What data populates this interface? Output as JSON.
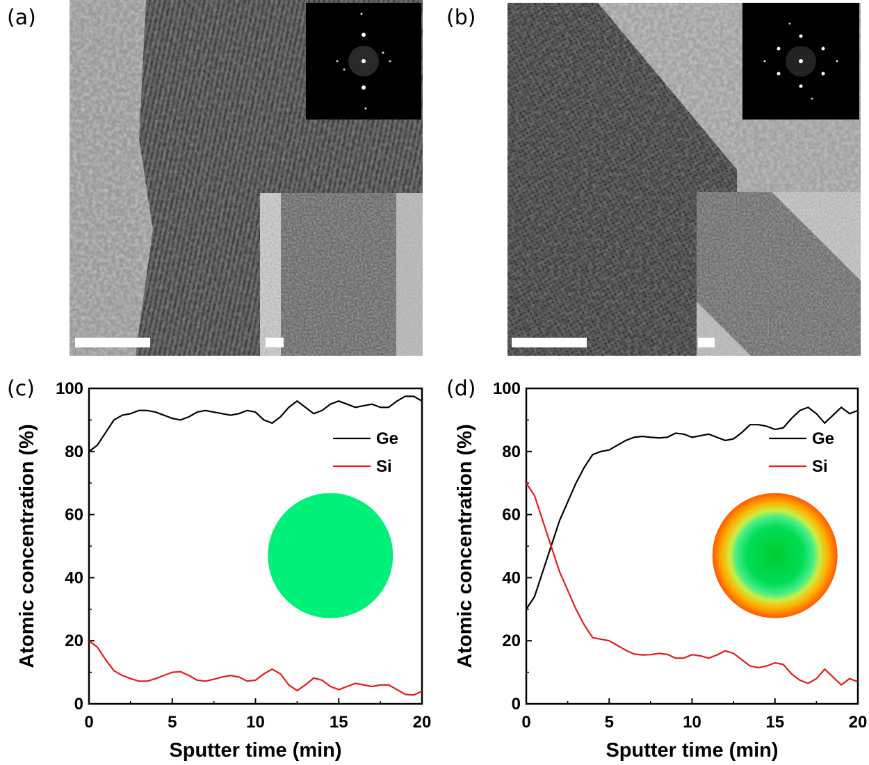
{
  "figure": {
    "panels": [
      {
        "id": "a",
        "label": "(a)"
      },
      {
        "id": "b",
        "label": "(b)"
      },
      {
        "id": "c",
        "label": "(c)"
      },
      {
        "id": "d",
        "label": "(d)"
      }
    ]
  },
  "colors": {
    "ge": "#000000",
    "si": "#e41a1c",
    "uniform_particle": "#00f07a",
    "core": "#00d23c",
    "shell": "#ff6a00"
  },
  "chart_data": [
    {
      "panel": "c",
      "type": "line",
      "xlabel": "Sputter time (min)",
      "ylabel": "Atomic concentration (%)",
      "xlim": [
        0,
        20
      ],
      "ylim": [
        0,
        100
      ],
      "xticks": [
        0,
        5,
        10,
        15,
        20
      ],
      "yticks": [
        0,
        20,
        40,
        60,
        80,
        100
      ],
      "legend": "top-right",
      "inset": "uniform green circle",
      "series": [
        {
          "name": "Ge",
          "color": "#000000",
          "x": [
            0,
            0.5,
            1,
            1.5,
            2,
            2.5,
            3,
            3.5,
            4,
            4.5,
            5,
            5.5,
            6,
            6.5,
            7,
            7.5,
            8,
            8.5,
            9,
            9.5,
            10,
            10.5,
            11,
            11.5,
            12,
            12.5,
            13,
            13.5,
            14,
            14.5,
            15,
            15.5,
            16,
            16.5,
            17,
            17.5,
            18,
            18.5,
            19,
            19.5,
            20
          ],
          "y": [
            80,
            82,
            86,
            90,
            91.5,
            92,
            93,
            93,
            92.5,
            91.5,
            90.5,
            90,
            91,
            92.5,
            93,
            92.5,
            92,
            91.5,
            92,
            93,
            92.5,
            90,
            89,
            91,
            94,
            96,
            94,
            92,
            93,
            95,
            96,
            95,
            94,
            94.5,
            95,
            94,
            94,
            96,
            97.5,
            97.5,
            96
          ]
        },
        {
          "name": "Si",
          "color": "#e41a1c",
          "x": [
            0,
            0.5,
            1,
            1.5,
            2,
            2.5,
            3,
            3.5,
            4,
            4.5,
            5,
            5.5,
            6,
            6.5,
            7,
            7.5,
            8,
            8.5,
            9,
            9.5,
            10,
            10.5,
            11,
            11.5,
            12,
            12.5,
            13,
            13.5,
            14,
            14.5,
            15,
            15.5,
            16,
            16.5,
            17,
            17.5,
            18,
            18.5,
            19,
            19.5,
            20
          ],
          "y": [
            20,
            18,
            14,
            10.5,
            9,
            8,
            7.2,
            7.2,
            8,
            9,
            10,
            10.2,
            9,
            7.5,
            7.2,
            7.8,
            8.5,
            9,
            8.5,
            7.2,
            7.5,
            9.5,
            11,
            9.5,
            6,
            4.2,
            6,
            8.2,
            7.5,
            5.5,
            4.5,
            5.5,
            6.5,
            6,
            5.5,
            6,
            6,
            4.5,
            3,
            2.8,
            4
          ]
        }
      ]
    },
    {
      "panel": "d",
      "type": "line",
      "xlabel": "Sputter time (min)",
      "ylabel": "Atomic concentration (%)",
      "xlim": [
        0,
        20
      ],
      "ylim": [
        0,
        100
      ],
      "xticks": [
        0,
        5,
        10,
        15,
        20
      ],
      "yticks": [
        0,
        20,
        40,
        60,
        80,
        100
      ],
      "legend": "top-right",
      "inset": "core-shell gradient circle (green core, orange rim)",
      "series": [
        {
          "name": "Ge",
          "color": "#000000",
          "x": [
            0,
            0.5,
            1,
            1.5,
            2,
            2.5,
            3,
            3.5,
            4,
            4.5,
            5,
            5.5,
            6,
            6.5,
            7,
            7.5,
            8,
            8.5,
            9,
            9.5,
            10,
            10.5,
            11,
            11.5,
            12,
            12.5,
            13,
            13.5,
            14,
            14.5,
            15,
            15.5,
            16,
            16.5,
            17,
            17.5,
            18,
            18.5,
            19,
            19.5,
            20
          ],
          "y": [
            30,
            34,
            42,
            50,
            58,
            64,
            70,
            75,
            79,
            80,
            80.5,
            82,
            83.5,
            84.5,
            84.8,
            84.5,
            84.3,
            84.5,
            85.8,
            85.5,
            84.5,
            85,
            85.5,
            84.5,
            83.5,
            84,
            86,
            88.5,
            88.5,
            88,
            87,
            87.5,
            90.5,
            93,
            94,
            92,
            89,
            91.5,
            94,
            92,
            93
          ]
        },
        {
          "name": "Si",
          "color": "#e41a1c",
          "x": [
            0,
            0.5,
            1,
            1.5,
            2,
            2.5,
            3,
            3.5,
            4,
            4.5,
            5,
            5.5,
            6,
            6.5,
            7,
            7.5,
            8,
            8.5,
            9,
            9.5,
            10,
            10.5,
            11,
            11.5,
            12,
            12.5,
            13,
            13.5,
            14,
            14.5,
            15,
            15.5,
            16,
            16.5,
            17,
            17.5,
            18,
            18.5,
            19,
            19.5,
            20
          ],
          "y": [
            70,
            66,
            58,
            50,
            42,
            36,
            30,
            25,
            21,
            20.5,
            20,
            18.5,
            17,
            15.8,
            15.5,
            15.6,
            16,
            15.7,
            14.5,
            14.5,
            15.6,
            15.2,
            14.5,
            15.5,
            16.8,
            16,
            14,
            12,
            11.5,
            12,
            13,
            12.5,
            9.5,
            7.5,
            6.5,
            8,
            11,
            8.5,
            6,
            8,
            7
          ]
        }
      ]
    }
  ]
}
